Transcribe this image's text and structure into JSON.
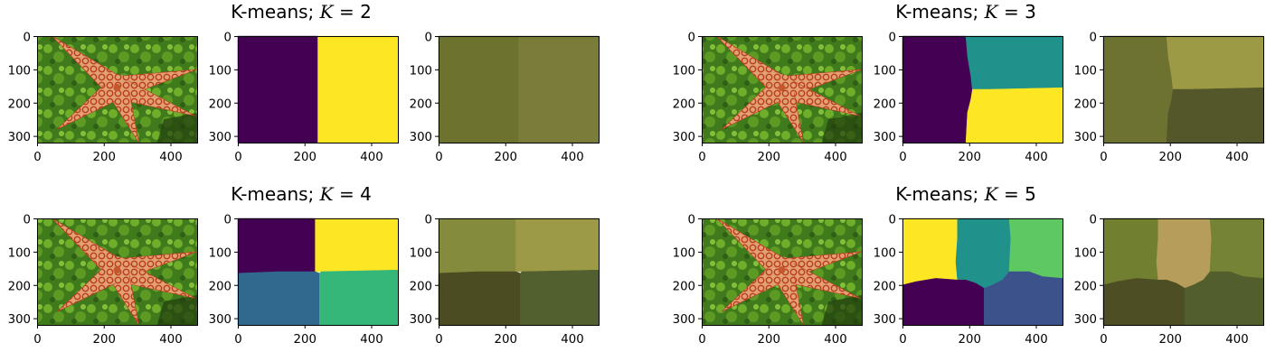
{
  "chart_data": {
    "type": "image-grid",
    "image_width": 480,
    "image_height": 320,
    "xlim": [
      0,
      480
    ],
    "ylim": [
      320,
      0
    ],
    "xticks": [
      0,
      200,
      400
    ],
    "yticks": [
      0,
      100,
      200,
      300
    ],
    "panels": [
      {
        "title_prefix": "K-means; ",
        "title_var": "K",
        "title_eq": " = 2",
        "k": 2,
        "label_regions": [
          {
            "polygon": [
              [
                0,
                0
              ],
              [
                240,
                0
              ],
              [
                240,
                320
              ],
              [
                0,
                320
              ]
            ],
            "label_color": "#440154"
          },
          {
            "polygon": [
              [
                240,
                0
              ],
              [
                480,
                0
              ],
              [
                480,
                320
              ],
              [
                240,
                320
              ]
            ],
            "label_color": "#fde725"
          }
        ],
        "recolor_regions": [
          {
            "polygon": [
              [
                0,
                0
              ],
              [
                240,
                0
              ],
              [
                240,
                320
              ],
              [
                0,
                320
              ]
            ],
            "color": "#6d722f"
          },
          {
            "polygon": [
              [
                240,
                0
              ],
              [
                480,
                0
              ],
              [
                480,
                320
              ],
              [
                240,
                320
              ]
            ],
            "color": "#7a7c3a"
          }
        ]
      },
      {
        "title_prefix": "K-means; ",
        "title_var": "K",
        "title_eq": " = 3",
        "k": 3,
        "label_regions": [
          {
            "polygon": [
              [
                0,
                0
              ],
              [
                190,
                0
              ],
              [
                195,
                60
              ],
              [
                205,
                120
              ],
              [
                210,
                160
              ],
              [
                205,
                190
              ],
              [
                195,
                230
              ],
              [
                190,
                320
              ],
              [
                0,
                320
              ]
            ],
            "label_color": "#440154"
          },
          {
            "polygon": [
              [
                190,
                0
              ],
              [
                480,
                0
              ],
              [
                480,
                155
              ],
              [
                260,
                160
              ],
              [
                210,
                165
              ],
              [
                205,
                120
              ],
              [
                195,
                60
              ]
            ],
            "label_color": "#21918c"
          },
          {
            "polygon": [
              [
                210,
                160
              ],
              [
                260,
                160
              ],
              [
                480,
                155
              ],
              [
                480,
                320
              ],
              [
                190,
                320
              ],
              [
                195,
                230
              ],
              [
                205,
                190
              ]
            ],
            "label_color": "#fde725"
          }
        ],
        "recolor_regions": [
          {
            "polygon": [
              [
                0,
                0
              ],
              [
                190,
                0
              ],
              [
                195,
                60
              ],
              [
                205,
                120
              ],
              [
                210,
                160
              ],
              [
                205,
                190
              ],
              [
                195,
                230
              ],
              [
                190,
                320
              ],
              [
                0,
                320
              ]
            ],
            "color": "#6e7230"
          },
          {
            "polygon": [
              [
                190,
                0
              ],
              [
                480,
                0
              ],
              [
                480,
                155
              ],
              [
                260,
                160
              ],
              [
                210,
                165
              ],
              [
                205,
                120
              ],
              [
                195,
                60
              ]
            ],
            "color": "#9d9a45"
          },
          {
            "polygon": [
              [
                210,
                160
              ],
              [
                260,
                160
              ],
              [
                480,
                155
              ],
              [
                480,
                320
              ],
              [
                190,
                320
              ],
              [
                195,
                230
              ],
              [
                205,
                190
              ]
            ],
            "color": "#53572a"
          }
        ]
      },
      {
        "title_prefix": "K-means; ",
        "title_var": "K",
        "title_eq": " = 4",
        "k": 4,
        "label_regions": [
          {
            "polygon": [
              [
                0,
                0
              ],
              [
                232,
                0
              ],
              [
                232,
                160
              ],
              [
                120,
                160
              ],
              [
                0,
                165
              ]
            ],
            "label_color": "#440154"
          },
          {
            "polygon": [
              [
                232,
                0
              ],
              [
                480,
                0
              ],
              [
                480,
                155
              ],
              [
                250,
                160
              ],
              [
                232,
                160
              ]
            ],
            "label_color": "#fde725"
          },
          {
            "polygon": [
              [
                0,
                165
              ],
              [
                120,
                160
              ],
              [
                232,
                160
              ],
              [
                245,
                165
              ],
              [
                245,
                320
              ],
              [
                0,
                320
              ]
            ],
            "label_color": "#31688e"
          },
          {
            "polygon": [
              [
                245,
                165
              ],
              [
                250,
                160
              ],
              [
                480,
                155
              ],
              [
                480,
                320
              ],
              [
                245,
                320
              ]
            ],
            "label_color": "#35b779"
          }
        ],
        "recolor_regions": [
          {
            "polygon": [
              [
                0,
                0
              ],
              [
                232,
                0
              ],
              [
                232,
                160
              ],
              [
                120,
                160
              ],
              [
                0,
                165
              ]
            ],
            "color": "#858b3c"
          },
          {
            "polygon": [
              [
                232,
                0
              ],
              [
                480,
                0
              ],
              [
                480,
                155
              ],
              [
                250,
                160
              ],
              [
                232,
                160
              ]
            ],
            "color": "#9c9a46"
          },
          {
            "polygon": [
              [
                0,
                165
              ],
              [
                120,
                160
              ],
              [
                232,
                160
              ],
              [
                245,
                165
              ],
              [
                245,
                320
              ],
              [
                0,
                320
              ]
            ],
            "color": "#4b4c22"
          },
          {
            "polygon": [
              [
                245,
                165
              ],
              [
                250,
                160
              ],
              [
                480,
                155
              ],
              [
                480,
                320
              ],
              [
                245,
                320
              ]
            ],
            "color": "#52602f"
          }
        ]
      },
      {
        "title_prefix": "K-means; ",
        "title_var": "K",
        "title_eq": " = 5",
        "k": 5,
        "label_regions": [
          {
            "polygon": [
              [
                0,
                0
              ],
              [
                165,
                0
              ],
              [
                165,
                60
              ],
              [
                160,
                130
              ],
              [
                165,
                185
              ],
              [
                100,
                180
              ],
              [
                40,
                190
              ],
              [
                0,
                200
              ]
            ],
            "label_color": "#fde725"
          },
          {
            "polygon": [
              [
                165,
                0
              ],
              [
                320,
                0
              ],
              [
                325,
                60
              ],
              [
                320,
                160
              ],
              [
                300,
                185
              ],
              [
                270,
                200
              ],
              [
                245,
                210
              ],
              [
                220,
                195
              ],
              [
                190,
                185
              ],
              [
                165,
                185
              ],
              [
                160,
                130
              ],
              [
                165,
                60
              ]
            ],
            "label_color": "#21918c"
          },
          {
            "polygon": [
              [
                320,
                0
              ],
              [
                480,
                0
              ],
              [
                480,
                180
              ],
              [
                420,
                175
              ],
              [
                380,
                160
              ],
              [
                320,
                160
              ],
              [
                325,
                60
              ]
            ],
            "label_color": "#5ec962"
          },
          {
            "polygon": [
              [
                0,
                200
              ],
              [
                40,
                190
              ],
              [
                100,
                180
              ],
              [
                165,
                185
              ],
              [
                190,
                185
              ],
              [
                220,
                195
              ],
              [
                245,
                210
              ],
              [
                245,
                320
              ],
              [
                0,
                320
              ]
            ],
            "label_color": "#440154"
          },
          {
            "polygon": [
              [
                245,
                210
              ],
              [
                270,
                200
              ],
              [
                300,
                185
              ],
              [
                320,
                160
              ],
              [
                380,
                160
              ],
              [
                420,
                175
              ],
              [
                480,
                180
              ],
              [
                480,
                320
              ],
              [
                245,
                320
              ]
            ],
            "label_color": "#3b528b"
          }
        ],
        "recolor_regions": [
          {
            "polygon": [
              [
                0,
                0
              ],
              [
                165,
                0
              ],
              [
                165,
                60
              ],
              [
                160,
                130
              ],
              [
                165,
                185
              ],
              [
                100,
                180
              ],
              [
                40,
                190
              ],
              [
                0,
                200
              ]
            ],
            "color": "#707f30"
          },
          {
            "polygon": [
              [
                165,
                0
              ],
              [
                320,
                0
              ],
              [
                325,
                60
              ],
              [
                320,
                160
              ],
              [
                300,
                185
              ],
              [
                270,
                200
              ],
              [
                245,
                210
              ],
              [
                220,
                195
              ],
              [
                190,
                185
              ],
              [
                165,
                185
              ],
              [
                160,
                130
              ],
              [
                165,
                60
              ]
            ],
            "color": "#b79d5c"
          },
          {
            "polygon": [
              [
                320,
                0
              ],
              [
                480,
                0
              ],
              [
                480,
                180
              ],
              [
                420,
                175
              ],
              [
                380,
                160
              ],
              [
                320,
                160
              ],
              [
                325,
                60
              ]
            ],
            "color": "#748335"
          },
          {
            "polygon": [
              [
                0,
                200
              ],
              [
                40,
                190
              ],
              [
                100,
                180
              ],
              [
                165,
                185
              ],
              [
                190,
                185
              ],
              [
                220,
                195
              ],
              [
                245,
                210
              ],
              [
                245,
                320
              ],
              [
                0,
                320
              ]
            ],
            "color": "#4e4e24"
          },
          {
            "polygon": [
              [
                245,
                210
              ],
              [
                270,
                200
              ],
              [
                300,
                185
              ],
              [
                320,
                160
              ],
              [
                380,
                160
              ],
              [
                420,
                175
              ],
              [
                480,
                180
              ],
              [
                480,
                320
              ],
              [
                245,
                320
              ]
            ],
            "color": "#525f2d"
          }
        ]
      }
    ]
  },
  "colors": {
    "photo_background": "#3f7a1c",
    "photo_moss": "#6fae2a",
    "photo_shadow": "#223f0e",
    "starfish_body": "#e3a173",
    "starfish_spots": "#b83d1f",
    "starfish_center": "#c4572b"
  },
  "icons": {
    "original_image": "starfish-photo"
  }
}
